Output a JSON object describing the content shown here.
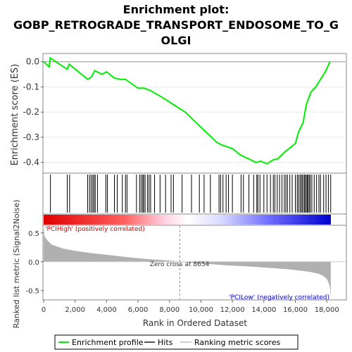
{
  "chart_data": {
    "type": "line",
    "title_line1": "Enrichment plot:",
    "title_line2": "GOBP_RETROGRADE_TRANSPORT_ENDOSOME_TO_G",
    "title_line3": "OLGI",
    "ylabel_top": "Enrichment score (ES)",
    "ylabel_bottom": "Ranked list metric (Signal2Noise)",
    "xlabel": "Rank in Ordered Dataset",
    "xlim": [
      0,
      19200
    ],
    "es_ylim": [
      -0.44,
      0.03
    ],
    "es_yticks": [
      "0.0",
      "-0.1",
      "-0.2",
      "-0.3",
      "-0.4"
    ],
    "es_ytick_values": [
      0.0,
      -0.1,
      -0.2,
      -0.3,
      -0.4
    ],
    "metric_ylim": [
      -0.65,
      0.62
    ],
    "metric_yticks": [
      "0.5",
      "0.0",
      "-0.5"
    ],
    "metric_ytick_values": [
      0.5,
      0.0,
      -0.5
    ],
    "xticks": [
      "0",
      "2,000",
      "4,000",
      "6,000",
      "8,000",
      "10,000",
      "12,000",
      "14,000",
      "16,000",
      "18,000"
    ],
    "xtick_values": [
      0,
      2000,
      4000,
      6000,
      8000,
      10000,
      12000,
      14000,
      16000,
      18000
    ],
    "enrichment_profile": {
      "x": [
        0,
        350,
        420,
        1500,
        1620,
        2800,
        3050,
        3250,
        3700,
        4000,
        4500,
        4900,
        5200,
        6000,
        6400,
        6800,
        7500,
        8000,
        8500,
        9000,
        10000,
        11000,
        11300,
        12000,
        12500,
        13000,
        13500,
        13800,
        14200,
        14600,
        14900,
        15300,
        15700,
        16000,
        16200,
        16500,
        16700,
        17000,
        17300,
        17600,
        17900,
        18200
      ],
      "y": [
        0.0,
        -0.02,
        0.015,
        -0.03,
        -0.01,
        -0.07,
        -0.06,
        -0.035,
        -0.05,
        -0.04,
        -0.065,
        -0.07,
        -0.07,
        -0.105,
        -0.105,
        -0.115,
        -0.14,
        -0.16,
        -0.18,
        -0.2,
        -0.26,
        -0.32,
        -0.33,
        -0.345,
        -0.37,
        -0.385,
        -0.4,
        -0.395,
        -0.405,
        -0.39,
        -0.385,
        -0.36,
        -0.34,
        -0.325,
        -0.28,
        -0.24,
        -0.17,
        -0.12,
        -0.1,
        -0.07,
        -0.04,
        0.0
      ]
    },
    "hits": [
      430,
      1500,
      1650,
      2800,
      2920,
      3020,
      3120,
      3200,
      3280,
      3420,
      3950,
      4050,
      4500,
      4680,
      5000,
      5200,
      5300,
      5900,
      6100,
      6200,
      6300,
      6360,
      6450,
      6600,
      6700,
      6800,
      7050,
      7400,
      7750,
      8100,
      8250,
      8800,
      9400,
      9900,
      10200,
      10600,
      11150,
      11250,
      11400,
      11600,
      11750,
      12000,
      12550,
      12700,
      13050,
      13350,
      13550,
      13620,
      13750,
      14000,
      14200,
      14420,
      14600,
      14700,
      14850,
      15000,
      15150,
      15300,
      15400,
      15500,
      15650,
      15800,
      16000,
      16120,
      16200,
      16300,
      16380,
      16450,
      16550,
      16600,
      16680,
      16750,
      16800,
      16880,
      16950,
      17050,
      17200,
      17350,
      17500,
      17600,
      17800,
      17950,
      18100,
      18250
    ],
    "metric": {
      "x": [
        0,
        50,
        150,
        300,
        500,
        800,
        1200,
        2000,
        3000,
        4000,
        5000,
        6000,
        7000,
        8000,
        8654,
        9500,
        10500,
        11500,
        12500,
        13500,
        14500,
        15500,
        16500,
        17000,
        17500,
        17800,
        18000,
        18100,
        18200,
        18250
      ],
      "y": [
        0.6,
        0.45,
        0.4,
        0.35,
        0.3,
        0.27,
        0.23,
        0.19,
        0.15,
        0.12,
        0.09,
        0.06,
        0.04,
        0.02,
        0.0,
        -0.02,
        -0.04,
        -0.06,
        -0.075,
        -0.09,
        -0.11,
        -0.13,
        -0.16,
        -0.18,
        -0.21,
        -0.25,
        -0.3,
        -0.35,
        -0.45,
        -0.62
      ]
    },
    "zero_cross_label": "Zero cross at 8654",
    "pos_label": "'PCIHigh' (positively correlated)",
    "neg_label": "'PCILow' (negatively correlated)",
    "colors": {
      "profile": "#00ee00",
      "hits": "#000000",
      "metric_fill": "#b0b0b0",
      "pos_label": "#cc0000",
      "neg_label": "#0000cc",
      "bar_red": "#ff0000",
      "bar_blue": "#0000ff"
    },
    "legend": {
      "profile": "Enrichment profile",
      "hits": "Hits",
      "ranking": "Ranking metric scores"
    }
  }
}
